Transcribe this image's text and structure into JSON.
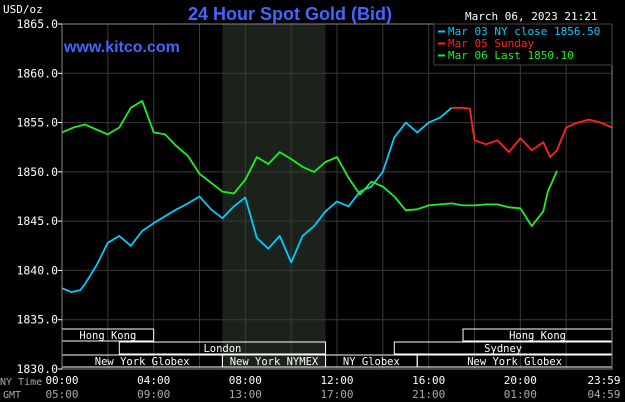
{
  "chart_data": {
    "type": "line",
    "title": "24 Hour Spot Gold (Bid)",
    "ylabel": "USD/oz",
    "watermark": "www.kitco.com",
    "timestamp": "March 06, 2023 21:21",
    "ylim": [
      1830,
      1865
    ],
    "yticks": [
      "1865.0",
      "1860.0",
      "1855.0",
      "1850.0",
      "1845.0",
      "1840.0",
      "1835.0",
      "1830.0"
    ],
    "xlim": [
      0,
      24
    ],
    "xticks_ny": [
      "00:00",
      "04:00",
      "08:00",
      "12:00",
      "16:00",
      "20:00",
      "23:59"
    ],
    "xticks_gmt": [
      "05:00",
      "09:00",
      "13:00",
      "17:00",
      "21:00",
      "01:00",
      "04:59"
    ],
    "x_row_label_ny": "NY Time",
    "x_row_label_gmt": "GMT",
    "shaded_session": [
      7,
      11.5
    ],
    "legend": [
      {
        "label": "Mar 03 NY close 1856.50",
        "color": "#00ccff"
      },
      {
        "label": "Mar 05 Sunday",
        "color": "#ff2222"
      },
      {
        "label": "Mar 06 Last 1850.10",
        "color": "#22ee22"
      }
    ],
    "sessions": [
      {
        "label": "Hong Kong",
        "start": 0,
        "end": 4,
        "row": 0
      },
      {
        "label": "Hong Kong",
        "start": 17.5,
        "end": 24,
        "row": 0
      },
      {
        "label": "London",
        "start": 2.5,
        "end": 11.5,
        "row": 1
      },
      {
        "label": "Sydney",
        "start": 14.5,
        "end": 24,
        "row": 1
      },
      {
        "label": "New York Globex",
        "start": 0,
        "end": 7,
        "row": 2
      },
      {
        "label": "New York NYMEX",
        "start": 7,
        "end": 11.5,
        "row": 2
      },
      {
        "label": "NY Globex",
        "start": 11.5,
        "end": 15.5,
        "row": 2
      },
      {
        "label": "New York Globex",
        "start": 15.5,
        "end": 24,
        "row": 2
      }
    ],
    "series": [
      {
        "name": "Mar 03 NY close 1856.50",
        "color": "#00ccff",
        "x": [
          0,
          0.4,
          0.8,
          1,
          1.5,
          2,
          2.5,
          3,
          3.5,
          4,
          4.5,
          5,
          5.5,
          6,
          6.5,
          7,
          7.5,
          8,
          8.5,
          9,
          9.5,
          10,
          10.5,
          11,
          11.5,
          12,
          12.5,
          13,
          13.5,
          14,
          14.5,
          15,
          15.5,
          16,
          16.5,
          17
        ],
        "y": [
          1838.2,
          1837.8,
          1838,
          1838.6,
          1840.5,
          1842.8,
          1843.5,
          1842.5,
          1844,
          1844.8,
          1845.5,
          1846.2,
          1846.8,
          1847.5,
          1846.2,
          1845.3,
          1846.5,
          1847.4,
          1843.3,
          1842.2,
          1843.5,
          1840.8,
          1843.5,
          1844.5,
          1846,
          1847,
          1846.5,
          1848,
          1848.5,
          1850,
          1853.5,
          1855,
          1854,
          1855,
          1855.5,
          1856.5
        ]
      },
      {
        "name": "Mar 05 Sunday",
        "color": "#ff2222",
        "x": [
          17,
          17.5,
          17.8,
          18,
          18.5,
          19,
          19.5,
          20,
          20.5,
          21,
          21.3,
          21.6,
          22,
          22.5,
          23,
          23.5,
          24
        ],
        "y": [
          1856.5,
          1856.5,
          1856.4,
          1853.2,
          1852.8,
          1853.2,
          1852,
          1853.4,
          1852.2,
          1853,
          1851.5,
          1852.2,
          1854.5,
          1855,
          1855.3,
          1855,
          1854.5
        ]
      },
      {
        "name": "Mar 06 Last 1850.10",
        "color": "#22ee22",
        "x": [
          0,
          0.5,
          1,
          1.5,
          2,
          2.5,
          3,
          3.5,
          4,
          4.5,
          5,
          5.5,
          6,
          6.5,
          7,
          7.5,
          8,
          8.5,
          9,
          9.5,
          10,
          10.5,
          11,
          11.5,
          12,
          12.5,
          13,
          13.5,
          14,
          14.5,
          15,
          15.5,
          16,
          16.5,
          17,
          17.5,
          18,
          18.5,
          19,
          19.5,
          20,
          20.5,
          21,
          21.2,
          21.6
        ],
        "y": [
          1854,
          1854.5,
          1854.8,
          1854.3,
          1853.8,
          1854.5,
          1856.5,
          1857.2,
          1854,
          1853.8,
          1852.6,
          1851.6,
          1849.8,
          1848.9,
          1848,
          1847.8,
          1849.2,
          1851.5,
          1850.8,
          1852,
          1851.3,
          1850.5,
          1850,
          1851,
          1851.5,
          1849.4,
          1847.7,
          1849,
          1848.5,
          1847.5,
          1846.1,
          1846.2,
          1846.6,
          1846.7,
          1846.8,
          1846.6,
          1846.6,
          1846.7,
          1846.7,
          1846.4,
          1846.3,
          1844.5,
          1846,
          1848,
          1850.1
        ]
      }
    ]
  }
}
